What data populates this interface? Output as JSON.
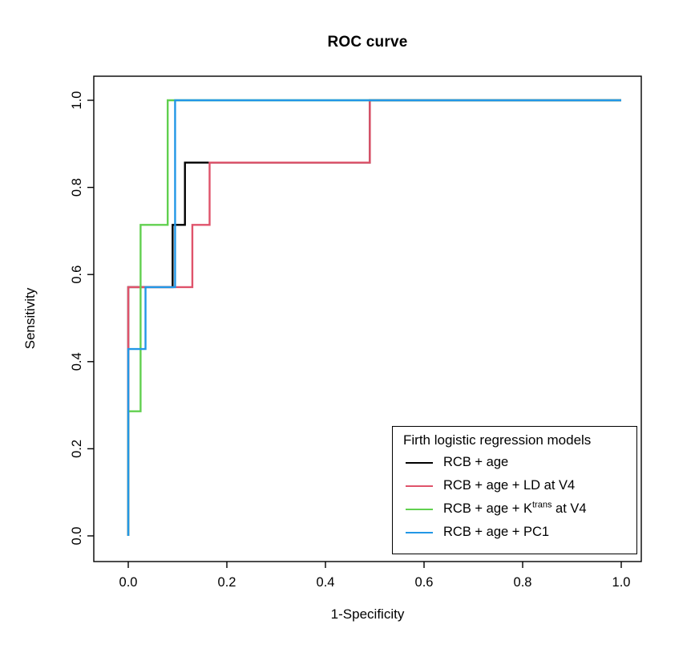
{
  "title": "ROC curve",
  "axes": {
    "xlabel": "1-Specificity",
    "ylabel": "Sensitivity",
    "xtick_labels": [
      "0.0",
      "0.2",
      "0.4",
      "0.6",
      "0.8",
      "1.0"
    ],
    "ytick_labels": [
      "0.0",
      "0.2",
      "0.4",
      "0.6",
      "0.8",
      "1.0"
    ]
  },
  "legend": {
    "title": "Firth logistic regression models",
    "entries": [
      {
        "pre": "RCB + age",
        "sup": "",
        "post": ""
      },
      {
        "pre": "RCB + age + LD at V4",
        "sup": "",
        "post": ""
      },
      {
        "pre": "RCB + age + K",
        "sup": "trans",
        "post": " at V4"
      },
      {
        "pre": "RCB + age + PC1",
        "sup": "",
        "post": ""
      }
    ]
  },
  "chart_data": {
    "type": "line",
    "subtype": "roc-step-curves",
    "title": "ROC curve",
    "xlabel": "1-Specificity",
    "ylabel": "Sensitivity",
    "xlim": [
      0,
      1
    ],
    "ylim": [
      0,
      1
    ],
    "xticks": [
      0,
      0.2,
      0.4,
      0.6,
      0.8,
      1.0
    ],
    "yticks": [
      0,
      0.2,
      0.4,
      0.6,
      0.8,
      1.0
    ],
    "grid": false,
    "legend_position": "bottom-right",
    "legend_title": "Firth logistic regression models",
    "series": [
      {
        "name": "RCB + age",
        "color": "#000000",
        "points": [
          [
            0,
            0
          ],
          [
            0,
            0.571
          ],
          [
            0.09,
            0.571
          ],
          [
            0.09,
            0.714
          ],
          [
            0.115,
            0.714
          ],
          [
            0.115,
            0.857
          ],
          [
            0.49,
            0.857
          ],
          [
            0.49,
            1
          ],
          [
            1,
            1
          ]
        ]
      },
      {
        "name": "RCB + age + LD at V4",
        "color": "#DF536B",
        "points": [
          [
            0,
            0
          ],
          [
            0,
            0.571
          ],
          [
            0.13,
            0.571
          ],
          [
            0.13,
            0.714
          ],
          [
            0.165,
            0.714
          ],
          [
            0.165,
            0.857
          ],
          [
            0.49,
            0.857
          ],
          [
            0.49,
            1
          ],
          [
            1,
            1
          ]
        ]
      },
      {
        "name": "RCB + age + K^trans at V4",
        "color": "#61D04F",
        "points": [
          [
            0,
            0
          ],
          [
            0,
            0.286
          ],
          [
            0.025,
            0.286
          ],
          [
            0.025,
            0.714
          ],
          [
            0.08,
            0.714
          ],
          [
            0.08,
            1
          ],
          [
            1,
            1
          ]
        ]
      },
      {
        "name": "RCB + age + PC1",
        "color": "#2297E6",
        "points": [
          [
            0,
            0
          ],
          [
            0,
            0.429
          ],
          [
            0.035,
            0.429
          ],
          [
            0.035,
            0.571
          ],
          [
            0.095,
            0.571
          ],
          [
            0.095,
            1
          ],
          [
            1,
            1
          ]
        ]
      }
    ]
  }
}
